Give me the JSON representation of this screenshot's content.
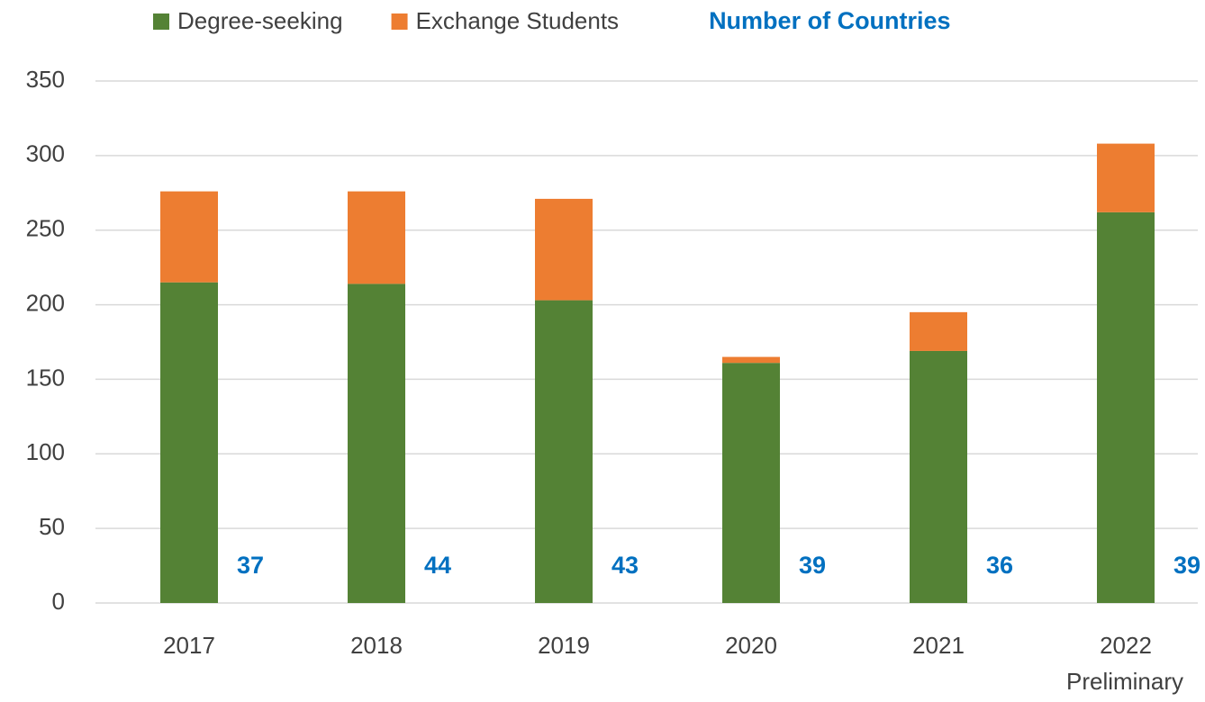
{
  "chart_data": {
    "type": "bar",
    "stacked": true,
    "categories": [
      "2017",
      "2018",
      "2019",
      "2020",
      "2021",
      "2022"
    ],
    "annotation": "Preliminary",
    "series": [
      {
        "name": "Degree-seeking",
        "color": "#548235",
        "values": [
          215,
          214,
          203,
          161,
          169,
          262
        ]
      },
      {
        "name": "Exchange Students",
        "color": "#ed7d31",
        "values": [
          61,
          62,
          68,
          4,
          26,
          46
        ]
      }
    ],
    "country_counts": {
      "name": "Number of Countries",
      "color": "#0070c0",
      "values": [
        37,
        44,
        43,
        39,
        36,
        39
      ]
    },
    "ylim": [
      0,
      350
    ],
    "yticks": [
      0,
      50,
      100,
      150,
      200,
      250,
      300,
      350
    ],
    "grid": true,
    "legend": "top"
  }
}
